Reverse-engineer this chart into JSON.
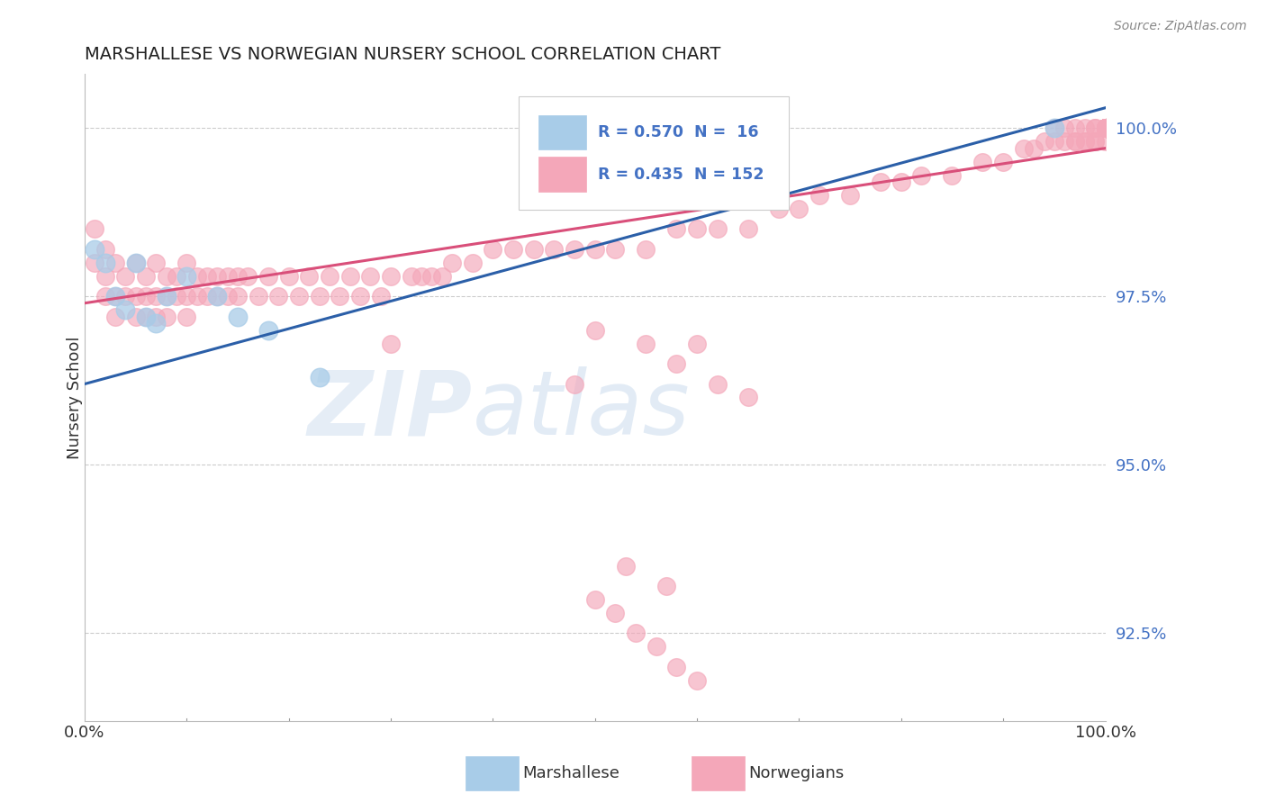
{
  "title": "MARSHALLESE VS NORWEGIAN NURSERY SCHOOL CORRELATION CHART",
  "ylabel": "Nursery School",
  "source": "Source: ZipAtlas.com",
  "watermark_zip": "ZIP",
  "watermark_atlas": "atlas",
  "legend_blue_r": "R = 0.570",
  "legend_blue_n": "N =  16",
  "legend_pink_r": "R = 0.435",
  "legend_pink_n": "N = 152",
  "blue_color": "#a8cce8",
  "blue_color_fill": "#a8cce8",
  "pink_color": "#f4a7b9",
  "blue_line_color": "#2b5fa8",
  "pink_line_color": "#d94f7a",
  "ytick_labels": [
    "100.0%",
    "97.5%",
    "95.0%",
    "92.5%"
  ],
  "ytick_values": [
    1.0,
    0.975,
    0.95,
    0.925
  ],
  "xlim": [
    0.0,
    1.0
  ],
  "ylim": [
    0.912,
    1.008
  ],
  "blue_scatter_x": [
    0.01,
    0.02,
    0.03,
    0.04,
    0.05,
    0.06,
    0.07,
    0.08,
    0.1,
    0.13,
    0.15,
    0.18,
    0.23,
    0.45,
    0.57,
    0.95
  ],
  "blue_scatter_y": [
    0.982,
    0.98,
    0.975,
    0.973,
    0.98,
    0.972,
    0.971,
    0.975,
    0.978,
    0.975,
    0.972,
    0.97,
    0.963,
    0.998,
    0.997,
    1.0
  ],
  "pink_scatter_x": [
    0.01,
    0.01,
    0.02,
    0.02,
    0.02,
    0.03,
    0.03,
    0.03,
    0.04,
    0.04,
    0.05,
    0.05,
    0.05,
    0.06,
    0.06,
    0.06,
    0.07,
    0.07,
    0.07,
    0.08,
    0.08,
    0.08,
    0.09,
    0.09,
    0.1,
    0.1,
    0.1,
    0.11,
    0.11,
    0.12,
    0.12,
    0.13,
    0.13,
    0.14,
    0.14,
    0.15,
    0.15,
    0.16,
    0.17,
    0.18,
    0.19,
    0.2,
    0.21,
    0.22,
    0.23,
    0.24,
    0.25,
    0.26,
    0.27,
    0.28,
    0.29,
    0.3,
    0.32,
    0.33,
    0.34,
    0.35,
    0.36,
    0.38,
    0.4,
    0.42,
    0.44,
    0.46,
    0.48,
    0.5,
    0.52,
    0.55,
    0.58,
    0.6,
    0.62,
    0.65,
    0.68,
    0.7,
    0.72,
    0.75,
    0.78,
    0.8,
    0.82,
    0.85,
    0.88,
    0.9,
    0.92,
    0.93,
    0.94,
    0.95,
    0.95,
    0.96,
    0.96,
    0.97,
    0.97,
    0.97,
    0.98,
    0.98,
    0.98,
    0.99,
    0.99,
    0.99,
    0.99,
    1.0,
    1.0,
    1.0,
    1.0,
    1.0,
    1.0,
    1.0,
    1.0,
    1.0,
    1.0,
    1.0,
    1.0,
    1.0,
    1.0,
    1.0,
    1.0,
    1.0,
    1.0,
    1.0,
    1.0,
    1.0,
    1.0,
    1.0,
    1.0,
    1.0,
    1.0,
    1.0,
    1.0,
    1.0,
    1.0,
    1.0,
    1.0,
    1.0,
    1.0,
    1.0,
    1.0,
    1.0,
    1.0,
    1.0,
    0.3,
    0.48,
    0.5,
    0.55,
    0.58,
    0.6,
    0.62,
    0.65,
    0.5,
    0.52,
    0.54,
    0.56,
    0.58,
    0.6,
    0.53,
    0.57
  ],
  "pink_scatter_y": [
    0.985,
    0.98,
    0.982,
    0.978,
    0.975,
    0.98,
    0.975,
    0.972,
    0.978,
    0.975,
    0.98,
    0.975,
    0.972,
    0.978,
    0.975,
    0.972,
    0.98,
    0.975,
    0.972,
    0.978,
    0.975,
    0.972,
    0.978,
    0.975,
    0.98,
    0.975,
    0.972,
    0.978,
    0.975,
    0.978,
    0.975,
    0.978,
    0.975,
    0.978,
    0.975,
    0.978,
    0.975,
    0.978,
    0.975,
    0.978,
    0.975,
    0.978,
    0.975,
    0.978,
    0.975,
    0.978,
    0.975,
    0.978,
    0.975,
    0.978,
    0.975,
    0.978,
    0.978,
    0.978,
    0.978,
    0.978,
    0.98,
    0.98,
    0.982,
    0.982,
    0.982,
    0.982,
    0.982,
    0.982,
    0.982,
    0.982,
    0.985,
    0.985,
    0.985,
    0.985,
    0.988,
    0.988,
    0.99,
    0.99,
    0.992,
    0.992,
    0.993,
    0.993,
    0.995,
    0.995,
    0.997,
    0.997,
    0.998,
    0.998,
    1.0,
    0.998,
    1.0,
    0.998,
    1.0,
    0.998,
    0.998,
    1.0,
    0.998,
    1.0,
    0.998,
    1.0,
    0.998,
    1.0,
    0.998,
    1.0,
    1.0,
    1.0,
    1.0,
    1.0,
    1.0,
    1.0,
    1.0,
    1.0,
    1.0,
    1.0,
    1.0,
    1.0,
    1.0,
    1.0,
    1.0,
    1.0,
    1.0,
    1.0,
    1.0,
    1.0,
    1.0,
    1.0,
    1.0,
    1.0,
    1.0,
    1.0,
    1.0,
    1.0,
    1.0,
    1.0,
    1.0,
    1.0,
    1.0,
    1.0,
    1.0,
    1.0,
    0.968,
    0.962,
    0.97,
    0.968,
    0.965,
    0.968,
    0.962,
    0.96,
    0.93,
    0.928,
    0.925,
    0.923,
    0.92,
    0.918,
    0.935,
    0.932
  ],
  "bottom_legend_labels": [
    "Marshallese",
    "Norwegians"
  ]
}
